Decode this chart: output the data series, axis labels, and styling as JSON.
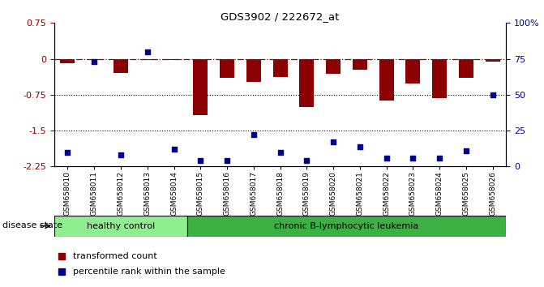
{
  "title": "GDS3902 / 222672_at",
  "samples": [
    "GSM658010",
    "GSM658011",
    "GSM658012",
    "GSM658013",
    "GSM658014",
    "GSM658015",
    "GSM658016",
    "GSM658017",
    "GSM658018",
    "GSM658019",
    "GSM658020",
    "GSM658021",
    "GSM658022",
    "GSM658023",
    "GSM658024",
    "GSM658025",
    "GSM658026"
  ],
  "bar_values": [
    -0.1,
    -0.03,
    -0.3,
    -0.03,
    -0.03,
    -1.18,
    -0.4,
    -0.48,
    -0.38,
    -1.0,
    -0.32,
    -0.22,
    -0.88,
    -0.52,
    -0.82,
    -0.4,
    -0.05
  ],
  "percentile_values": [
    10,
    73,
    8,
    80,
    12,
    4,
    4,
    22,
    10,
    4,
    17,
    14,
    6,
    6,
    6,
    11,
    50
  ],
  "ylim_left": [
    -2.25,
    0.75
  ],
  "ylim_right": [
    0,
    100
  ],
  "yticks_left": [
    0.75,
    0,
    -0.75,
    -1.5,
    -2.25
  ],
  "ytick_labels_left": [
    "0.75",
    "0",
    "-0.75",
    "-1.5",
    "-2.25"
  ],
  "yticks_right": [
    100,
    75,
    50,
    25,
    0
  ],
  "ytick_labels_right": [
    "100%",
    "75",
    "50",
    "25",
    "0"
  ],
  "dotted_lines": [
    -0.75,
    -1.5
  ],
  "bar_color": "#8B0000",
  "dot_color": "#00008B",
  "healthy_label": "healthy control",
  "leukemia_label": "chronic B-lymphocytic leukemia",
  "healthy_count": 5,
  "leukemia_count": 12,
  "legend1": "transformed count",
  "legend2": "percentile rank within the sample",
  "disease_state_label": "disease state",
  "healthy_color": "#90EE90",
  "leukemia_color": "#3CB043",
  "bar_width": 0.55
}
